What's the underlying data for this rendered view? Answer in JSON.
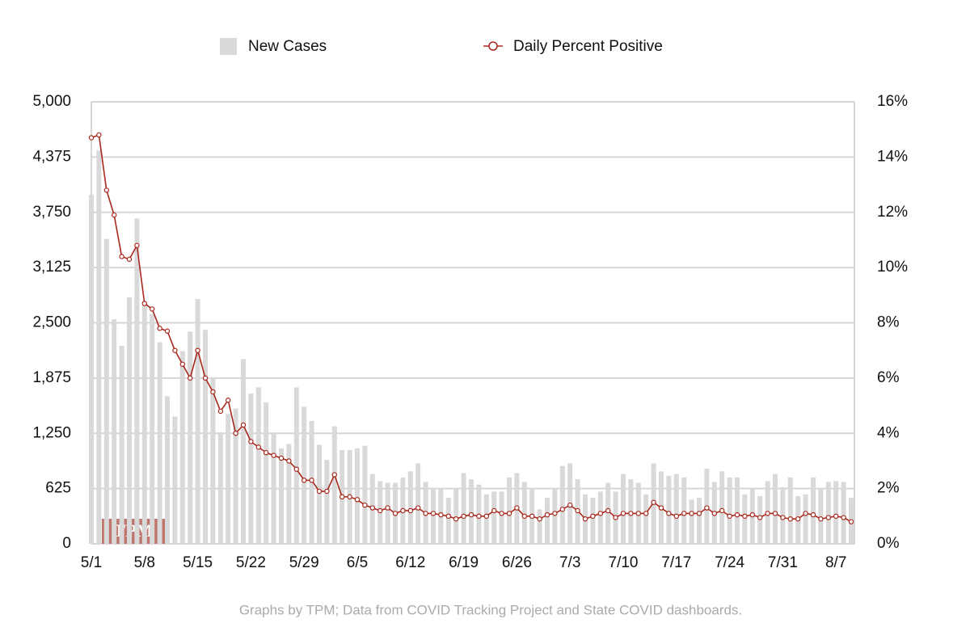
{
  "chart_data": {
    "type": "bar-line",
    "legend": [
      "top",
      "center"
    ],
    "footer": "Graphs by TPM; Data from COVID Tracking Project and State COVID dashboards.",
    "watermark": "TPM",
    "categories": [
      "5/1",
      null,
      null,
      null,
      null,
      null,
      null,
      "5/8",
      null,
      null,
      null,
      null,
      null,
      null,
      "5/15",
      null,
      null,
      null,
      null,
      null,
      null,
      "5/22",
      null,
      null,
      null,
      null,
      null,
      null,
      "5/29",
      null,
      null,
      null,
      null,
      null,
      null,
      "6/5",
      null,
      null,
      null,
      null,
      null,
      null,
      "6/12",
      null,
      null,
      null,
      null,
      null,
      null,
      "6/19",
      null,
      null,
      null,
      null,
      null,
      null,
      "6/26",
      null,
      null,
      null,
      null,
      null,
      null,
      "7/3",
      null,
      null,
      null,
      null,
      null,
      null,
      "7/10",
      null,
      null,
      null,
      null,
      null,
      null,
      "7/17",
      null,
      null,
      null,
      null,
      null,
      null,
      "7/24",
      null,
      null,
      null,
      null,
      null,
      null,
      "7/31",
      null,
      null,
      null,
      null,
      null,
      null,
      "8/7",
      null,
      null
    ],
    "series": [
      {
        "name": "New Cases",
        "type": "bar",
        "color": "#d9d9d9",
        "values": [
          3950,
          4450,
          3450,
          2540,
          2240,
          2790,
          3680,
          2700,
          2600,
          2280,
          1670,
          1440,
          2180,
          2400,
          2770,
          2420,
          1880,
          1260,
          1470,
          1530,
          2090,
          1700,
          1770,
          1600,
          1250,
          1080,
          1130,
          1770,
          1550,
          1390,
          1120,
          950,
          1330,
          1060,
          1060,
          1080,
          1110,
          790,
          710,
          690,
          690,
          750,
          820,
          910,
          700,
          630,
          630,
          520,
          630,
          800,
          730,
          670,
          560,
          590,
          590,
          750,
          800,
          700,
          630,
          390,
          520,
          630,
          880,
          910,
          730,
          560,
          520,
          590,
          690,
          590,
          790,
          730,
          690,
          560,
          910,
          820,
          770,
          790,
          750,
          500,
          520,
          850,
          700,
          820,
          750,
          750,
          560,
          630,
          540,
          710,
          790,
          640,
          750,
          540,
          560,
          750,
          630,
          700,
          710,
          700,
          520
        ]
      },
      {
        "name": "Daily Percent Positive",
        "type": "line",
        "axis": "y2",
        "color": "#a8281c",
        "values": [
          14.7,
          14.8,
          12.8,
          11.9,
          10.4,
          10.3,
          10.8,
          8.7,
          8.5,
          7.8,
          7.7,
          7.0,
          6.5,
          6.0,
          7.0,
          6.0,
          5.5,
          4.8,
          5.2,
          4.0,
          4.3,
          3.7,
          3.5,
          3.3,
          3.2,
          3.1,
          3.0,
          2.7,
          2.3,
          2.3,
          1.9,
          1.9,
          2.5,
          1.7,
          1.7,
          1.6,
          1.4,
          1.3,
          1.2,
          1.3,
          1.1,
          1.2,
          1.2,
          1.3,
          1.1,
          1.1,
          1.05,
          1.0,
          0.9,
          1.0,
          1.05,
          1.0,
          1.0,
          1.2,
          1.1,
          1.1,
          1.3,
          1.0,
          1.0,
          0.9,
          1.05,
          1.1,
          1.25,
          1.4,
          1.2,
          0.9,
          1.0,
          1.1,
          1.2,
          0.95,
          1.1,
          1.1,
          1.1,
          1.1,
          1.5,
          1.3,
          1.1,
          1.0,
          1.1,
          1.1,
          1.1,
          1.3,
          1.1,
          1.2,
          1.0,
          1.05,
          1.0,
          1.05,
          0.95,
          1.1,
          1.1,
          0.95,
          0.9,
          0.9,
          1.1,
          1.05,
          0.9,
          0.95,
          1.0,
          0.95,
          0.8
        ]
      }
    ],
    "ylim": [
      0,
      5000
    ],
    "yticks": [
      0,
      625,
      {
        "value": 1250,
        "label": "1,250"
      },
      {
        "value": 1875,
        "label": "1,875"
      },
      {
        "value": 2500,
        "label": "2,500"
      },
      {
        "value": 3125,
        "label": "3,125"
      },
      {
        "value": 3750,
        "label": "3,750"
      },
      {
        "value": 4375,
        "label": "4,375"
      },
      {
        "value": 5000,
        "label": "5,000"
      }
    ],
    "y2lim": [
      0,
      16
    ],
    "y2ticks": [
      {
        "value": 0,
        "label": "0%"
      },
      {
        "value": 2,
        "label": "2%"
      },
      {
        "value": 4,
        "label": "4%"
      },
      {
        "value": 6,
        "label": "6%"
      },
      {
        "value": 8,
        "label": "8%"
      },
      {
        "value": 10,
        "label": "10%"
      },
      {
        "value": 12,
        "label": "12%"
      },
      {
        "value": 14,
        "label": "14%"
      },
      {
        "value": 16,
        "label": "16%"
      }
    ],
    "grid": true
  }
}
